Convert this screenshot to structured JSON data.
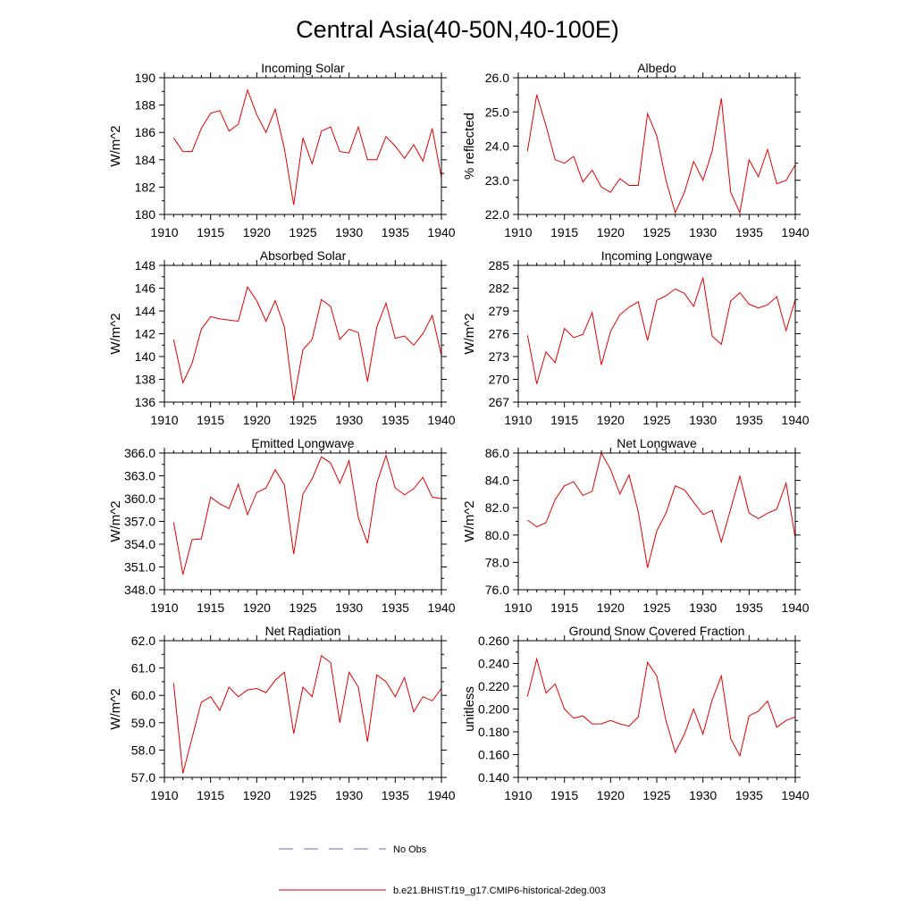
{
  "title": "Central Asia(40-50N,40-100E)",
  "x_ticks": [
    1910,
    1915,
    1920,
    1925,
    1930,
    1935,
    1940
  ],
  "x_range": [
    1910,
    1940
  ],
  "series_color": "#e00000",
  "obs_color": "#6a6ab8",
  "chart_data": [
    {
      "type": "line",
      "title": "Incoming Solar",
      "ylabel": "W/m^2",
      "ylim": [
        180,
        190
      ],
      "y_ticks": [
        "180",
        "182",
        "184",
        "186",
        "188",
        "190"
      ],
      "x": [
        1911,
        1912,
        1913,
        1914,
        1915,
        1916,
        1917,
        1918,
        1919,
        1920,
        1921,
        1922,
        1923,
        1924,
        1925,
        1926,
        1927,
        1928,
        1929,
        1930,
        1931,
        1932,
        1933,
        1934,
        1935,
        1936,
        1937,
        1938,
        1939,
        1940
      ],
      "values": [
        185.6,
        184.6,
        184.6,
        186.3,
        187.4,
        187.6,
        186.1,
        186.6,
        189.1,
        187.3,
        186.0,
        187.7,
        184.8,
        180.7,
        185.6,
        183.7,
        186.1,
        186.4,
        184.6,
        184.5,
        186.4,
        184.0,
        184.0,
        185.7,
        185.0,
        184.1,
        185.1,
        183.9,
        186.3,
        182.7
      ]
    },
    {
      "type": "line",
      "title": "Albedo",
      "ylabel": "% reflected",
      "ylim": [
        22.0,
        26.0
      ],
      "y_ticks": [
        "22.0",
        "23.0",
        "24.0",
        "25.0",
        "26.0"
      ],
      "x": [
        1911,
        1912,
        1913,
        1914,
        1915,
        1916,
        1917,
        1918,
        1919,
        1920,
        1921,
        1922,
        1923,
        1924,
        1925,
        1926,
        1927,
        1928,
        1929,
        1930,
        1931,
        1932,
        1933,
        1934,
        1935,
        1936,
        1937,
        1938,
        1939,
        1940
      ],
      "values": [
        23.85,
        25.5,
        24.6,
        23.6,
        23.5,
        23.7,
        22.95,
        23.3,
        22.8,
        22.65,
        23.05,
        22.85,
        22.85,
        24.95,
        24.3,
        23.0,
        22.05,
        22.65,
        23.55,
        23.0,
        23.85,
        25.4,
        22.65,
        22.05,
        23.6,
        23.1,
        23.9,
        22.9,
        23.0,
        23.45
      ]
    },
    {
      "type": "line",
      "title": "Absorbed Solar",
      "ylabel": "W/m^2",
      "ylim": [
        136,
        148
      ],
      "y_ticks": [
        "136",
        "138",
        "140",
        "142",
        "144",
        "146",
        "148"
      ],
      "x": [
        1911,
        1912,
        1913,
        1914,
        1915,
        1916,
        1917,
        1918,
        1919,
        1920,
        1921,
        1922,
        1923,
        1924,
        1925,
        1926,
        1927,
        1928,
        1929,
        1930,
        1931,
        1932,
        1933,
        1934,
        1935,
        1936,
        1937,
        1938,
        1939,
        1940
      ],
      "values": [
        141.5,
        137.7,
        139.4,
        142.4,
        143.5,
        143.3,
        143.2,
        143.1,
        146.1,
        144.9,
        143.1,
        144.9,
        142.6,
        136.1,
        140.6,
        141.5,
        145.0,
        144.4,
        141.5,
        142.4,
        142.1,
        137.8,
        142.6,
        144.7,
        141.6,
        141.8,
        141.0,
        142.0,
        143.6,
        140.1
      ]
    },
    {
      "type": "line",
      "title": "Incoming Longwave",
      "ylabel": "W/m^2",
      "ylim": [
        267,
        285
      ],
      "y_ticks": [
        "267",
        "270",
        "273",
        "276",
        "279",
        "282",
        "285"
      ],
      "x": [
        1911,
        1912,
        1913,
        1914,
        1915,
        1916,
        1917,
        1918,
        1919,
        1920,
        1921,
        1922,
        1923,
        1924,
        1925,
        1926,
        1927,
        1928,
        1929,
        1930,
        1931,
        1932,
        1933,
        1934,
        1935,
        1936,
        1937,
        1938,
        1939,
        1940
      ],
      "values": [
        275.8,
        269.4,
        273.6,
        272.2,
        276.7,
        275.5,
        275.9,
        278.8,
        271.9,
        276.3,
        278.5,
        279.5,
        280.2,
        275.1,
        280.4,
        281.0,
        281.9,
        281.3,
        279.6,
        283.4,
        275.7,
        274.6,
        280.3,
        281.4,
        279.9,
        279.4,
        279.8,
        280.9,
        276.4,
        280.5
      ]
    },
    {
      "type": "line",
      "title": "Emitted Longwave",
      "ylabel": "W/m^2",
      "ylim": [
        348.0,
        366.0
      ],
      "y_ticks": [
        "348.0",
        "351.0",
        "354.0",
        "357.0",
        "360.0",
        "363.0",
        "366.0"
      ],
      "x": [
        1911,
        1912,
        1913,
        1914,
        1915,
        1916,
        1917,
        1918,
        1919,
        1920,
        1921,
        1922,
        1923,
        1924,
        1925,
        1926,
        1927,
        1928,
        1929,
        1930,
        1931,
        1932,
        1933,
        1934,
        1935,
        1936,
        1937,
        1938,
        1939,
        1940
      ],
      "values": [
        356.9,
        350.0,
        354.6,
        354.7,
        360.2,
        359.3,
        358.7,
        361.9,
        357.9,
        360.8,
        361.4,
        363.8,
        361.8,
        352.7,
        360.6,
        362.6,
        365.5,
        364.7,
        362.0,
        365.0,
        357.5,
        354.1,
        362.0,
        365.7,
        361.4,
        360.5,
        361.3,
        362.8,
        360.2,
        360.0
      ]
    },
    {
      "type": "line",
      "title": "Net Longwave",
      "ylabel": "W/m^2",
      "ylim": [
        76.0,
        86.0
      ],
      "y_ticks": [
        "76.0",
        "78.0",
        "80.0",
        "82.0",
        "84.0",
        "86.0"
      ],
      "x": [
        1911,
        1912,
        1913,
        1914,
        1915,
        1916,
        1917,
        1918,
        1919,
        1920,
        1921,
        1922,
        1923,
        1924,
        1925,
        1926,
        1927,
        1928,
        1929,
        1930,
        1931,
        1932,
        1933,
        1934,
        1935,
        1936,
        1937,
        1938,
        1939,
        1940
      ],
      "values": [
        81.1,
        80.6,
        80.9,
        82.6,
        83.6,
        83.9,
        82.9,
        83.2,
        86.0,
        84.8,
        83.0,
        84.4,
        81.7,
        77.6,
        80.3,
        81.6,
        83.6,
        83.3,
        82.4,
        81.5,
        81.8,
        79.5,
        81.9,
        84.3,
        81.6,
        81.2,
        81.6,
        81.9,
        83.8,
        79.8
      ]
    },
    {
      "type": "line",
      "title": "Net Radiation",
      "ylabel": "W/m^2",
      "ylim": [
        57.0,
        62.0
      ],
      "y_ticks": [
        "57.0",
        "58.0",
        "59.0",
        "60.0",
        "61.0",
        "62.0"
      ],
      "x": [
        1911,
        1912,
        1913,
        1914,
        1915,
        1916,
        1917,
        1918,
        1919,
        1920,
        1921,
        1922,
        1923,
        1924,
        1925,
        1926,
        1927,
        1928,
        1929,
        1930,
        1931,
        1932,
        1933,
        1934,
        1935,
        1936,
        1937,
        1938,
        1939,
        1940
      ],
      "values": [
        60.45,
        57.15,
        58.45,
        59.75,
        59.95,
        59.45,
        60.3,
        59.95,
        60.2,
        60.25,
        60.1,
        60.55,
        60.85,
        58.6,
        60.3,
        59.95,
        61.45,
        61.2,
        59.0,
        60.85,
        60.3,
        58.3,
        60.75,
        60.5,
        59.95,
        60.65,
        59.4,
        59.95,
        59.8,
        60.25
      ]
    },
    {
      "type": "line",
      "title": "Ground Snow Covered Fraction",
      "ylabel": "unitless",
      "ylim": [
        0.14,
        0.26
      ],
      "y_ticks": [
        "0.140",
        "0.160",
        "0.180",
        "0.200",
        "0.220",
        "0.240",
        "0.260"
      ],
      "x": [
        1911,
        1912,
        1913,
        1914,
        1915,
        1916,
        1917,
        1918,
        1919,
        1920,
        1921,
        1922,
        1923,
        1924,
        1925,
        1926,
        1927,
        1928,
        1929,
        1930,
        1931,
        1932,
        1933,
        1934,
        1935,
        1936,
        1937,
        1938,
        1939,
        1940
      ],
      "values": [
        0.211,
        0.244,
        0.214,
        0.222,
        0.2,
        0.192,
        0.194,
        0.187,
        0.187,
        0.19,
        0.187,
        0.185,
        0.193,
        0.241,
        0.229,
        0.19,
        0.162,
        0.178,
        0.2,
        0.178,
        0.208,
        0.229,
        0.174,
        0.159,
        0.194,
        0.198,
        0.207,
        0.184,
        0.19,
        0.193
      ]
    }
  ],
  "legend": {
    "obs_label": "No Obs",
    "model_label": "b.e21.BHIST.f19_g17.CMIP6-historical-2deg.003"
  }
}
